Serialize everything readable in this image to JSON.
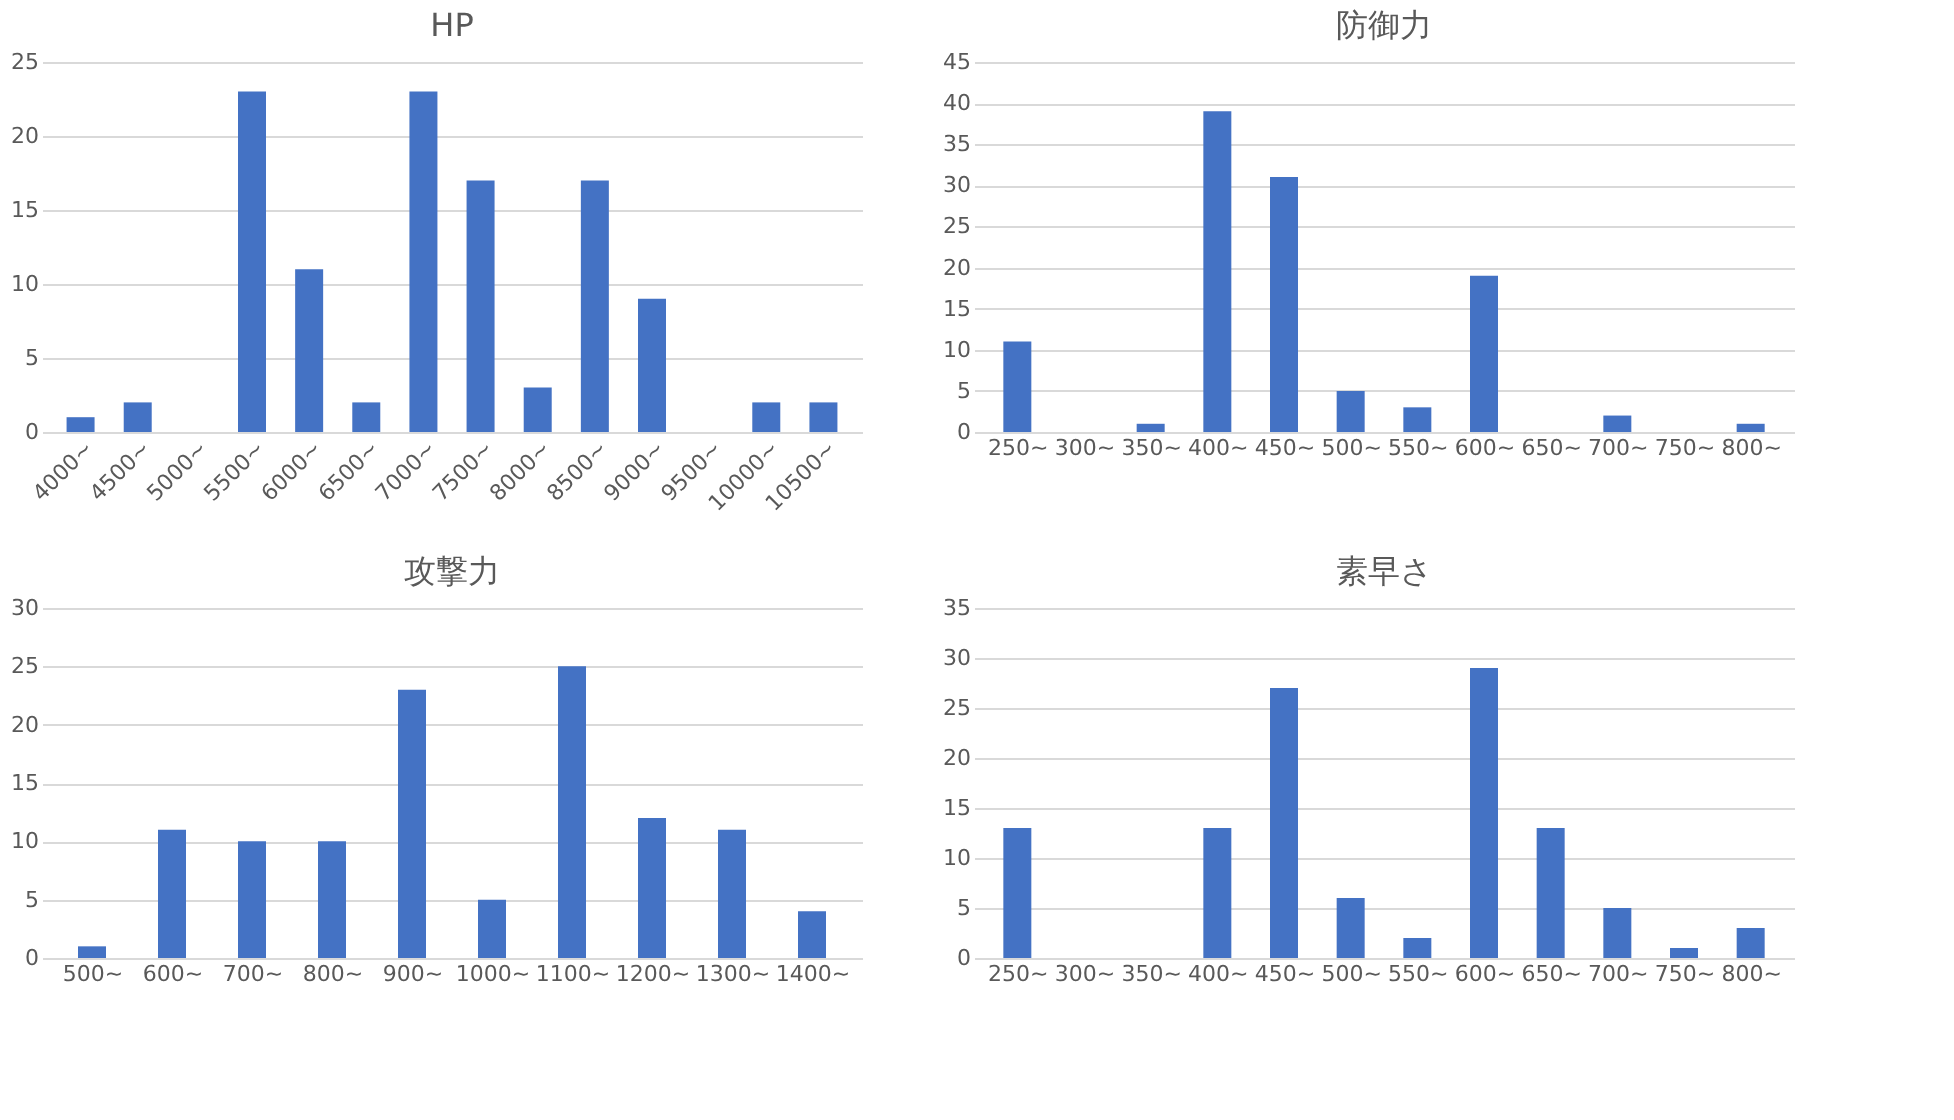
{
  "chart_data": [
    {
      "type": "bar",
      "title": "HP",
      "categories": [
        "4000~",
        "4500~",
        "5000~",
        "5500~",
        "6000~",
        "6500~",
        "7000~",
        "7500~",
        "8000~",
        "8500~",
        "9000~",
        "9500~",
        "10000~",
        "10500~"
      ],
      "values": [
        1,
        2,
        0,
        23,
        11,
        2,
        23,
        17,
        3,
        17,
        9,
        0,
        2,
        2
      ],
      "color": "#4472c4",
      "ylim": [
        0,
        25
      ],
      "yticks": [
        0,
        5,
        10,
        15,
        20,
        25
      ],
      "grid": "y"
    },
    {
      "type": "bar",
      "title": "防御力",
      "categories": [
        "250~",
        "300~",
        "350~",
        "400~",
        "450~",
        "500~",
        "550~",
        "600~",
        "650~",
        "700~",
        "750~",
        "800~"
      ],
      "values": [
        11,
        0,
        1,
        39,
        31,
        5,
        3,
        19,
        0,
        2,
        0,
        1
      ],
      "color": "#4472c4",
      "ylim": [
        0,
        45
      ],
      "yticks": [
        0,
        5,
        10,
        15,
        20,
        25,
        30,
        35,
        40,
        45
      ],
      "grid": "y"
    },
    {
      "type": "bar",
      "title": "攻撃力",
      "categories": [
        "500~",
        "600~",
        "700~",
        "800~",
        "900~",
        "1000~",
        "1100~",
        "1200~",
        "1300~",
        "1400~"
      ],
      "values": [
        1,
        11,
        10,
        10,
        23,
        5,
        25,
        12,
        11,
        4
      ],
      "color": "#4472c4",
      "ylim": [
        0,
        30
      ],
      "yticks": [
        0,
        5,
        10,
        15,
        20,
        25,
        30
      ],
      "grid": "y"
    },
    {
      "type": "bar",
      "title": "素早さ",
      "categories": [
        "250~",
        "300~",
        "350~",
        "400~",
        "450~",
        "500~",
        "550~",
        "600~",
        "650~",
        "700~",
        "750~",
        "800~"
      ],
      "values": [
        13,
        0,
        0,
        13,
        27,
        6,
        2,
        29,
        13,
        5,
        1,
        3
      ],
      "color": "#4472c4",
      "ylim": [
        0,
        35
      ],
      "yticks": [
        0,
        5,
        10,
        15,
        20,
        25,
        30,
        35
      ],
      "grid": "y"
    }
  ]
}
